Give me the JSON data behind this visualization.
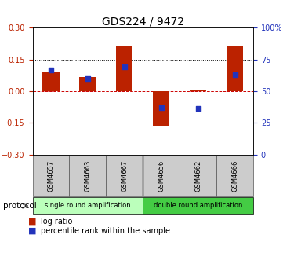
{
  "title": "GDS224 / 9472",
  "samples": [
    "GSM4657",
    "GSM4663",
    "GSM4667",
    "GSM4656",
    "GSM4662",
    "GSM4666"
  ],
  "log_ratio": [
    0.09,
    0.065,
    0.21,
    -0.165,
    0.005,
    0.215
  ],
  "percentile_rank": [
    67,
    60,
    69,
    37,
    36,
    63
  ],
  "groups": [
    {
      "label": "single round amplification",
      "color": "#bbffbb",
      "count": 3
    },
    {
      "label": "double round amplification",
      "color": "#44cc44",
      "count": 3
    }
  ],
  "ylim_left": [
    -0.3,
    0.3
  ],
  "ylim_right": [
    0,
    100
  ],
  "yticks_left": [
    -0.3,
    -0.15,
    0,
    0.15,
    0.3
  ],
  "yticks_right": [
    0,
    25,
    50,
    75,
    100
  ],
  "bar_color": "#bb2200",
  "dot_color": "#2233bb",
  "hline_color": "#cc0000",
  "bg_color": "white",
  "protocol_label": "protocol",
  "legend_log_ratio": "log ratio",
  "legend_percentile": "percentile rank within the sample",
  "title_fontsize": 10,
  "tick_fontsize": 7,
  "label_fontsize": 7,
  "bar_width": 0.45,
  "sample_box_color": "#cccccc",
  "sample_box_edge": "#555555"
}
